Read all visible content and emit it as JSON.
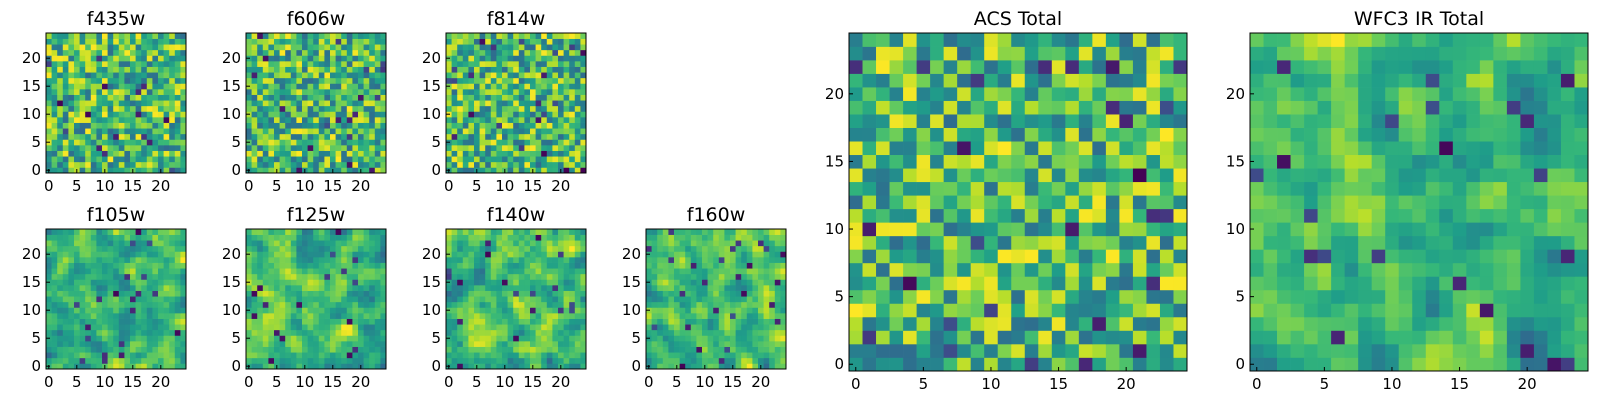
{
  "chart_data": [
    {
      "type": "heatmap",
      "title": "f435w",
      "grid": "25x25",
      "xticks": [
        "0",
        "5",
        "10",
        "15",
        "20"
      ],
      "yticks": [
        "0",
        "5",
        "10",
        "15",
        "20"
      ],
      "seed": 11,
      "smooth": 0,
      "colormap": "viridis"
    },
    {
      "type": "heatmap",
      "title": "f606w",
      "grid": "25x25",
      "xticks": [
        "0",
        "5",
        "10",
        "15",
        "20"
      ],
      "yticks": [
        "0",
        "5",
        "10",
        "15",
        "20"
      ],
      "seed": 23,
      "smooth": 0,
      "colormap": "viridis"
    },
    {
      "type": "heatmap",
      "title": "f814w",
      "grid": "25x25",
      "xticks": [
        "0",
        "5",
        "10",
        "15",
        "20"
      ],
      "yticks": [
        "0",
        "5",
        "10",
        "15",
        "20"
      ],
      "seed": 37,
      "smooth": 0,
      "colormap": "viridis"
    },
    {
      "type": "heatmap",
      "title": "f105w",
      "grid": "25x25",
      "xticks": [
        "0",
        "5",
        "10",
        "15",
        "20"
      ],
      "yticks": [
        "0",
        "5",
        "10",
        "15",
        "20"
      ],
      "seed": 41,
      "smooth": 1,
      "colormap": "viridis"
    },
    {
      "type": "heatmap",
      "title": "f125w",
      "grid": "25x25",
      "xticks": [
        "0",
        "5",
        "10",
        "15",
        "20"
      ],
      "yticks": [
        "0",
        "5",
        "10",
        "15",
        "20"
      ],
      "seed": 53,
      "smooth": 1,
      "colormap": "viridis"
    },
    {
      "type": "heatmap",
      "title": "f140w",
      "grid": "25x25",
      "xticks": [
        "0",
        "5",
        "10",
        "15",
        "20"
      ],
      "yticks": [
        "0",
        "5",
        "10",
        "15",
        "20"
      ],
      "seed": 67,
      "smooth": 1,
      "colormap": "viridis"
    },
    {
      "type": "heatmap",
      "title": "f160w",
      "grid": "25x25",
      "xticks": [
        "0",
        "5",
        "10",
        "15",
        "20"
      ],
      "yticks": [
        "0",
        "5",
        "10",
        "15",
        "20"
      ],
      "seed": 79,
      "smooth": 1,
      "colormap": "viridis"
    },
    {
      "type": "heatmap",
      "title": "ACS Total",
      "grid": "25x25",
      "xticks": [
        "0",
        "5",
        "10",
        "15",
        "20"
      ],
      "yticks": [
        "0",
        "5",
        "10",
        "15",
        "20"
      ],
      "seed": 97,
      "smooth": 0,
      "colormap": "viridis"
    },
    {
      "type": "heatmap",
      "title": "WFC3 IR Total",
      "grid": "25x25",
      "xticks": [
        "0",
        "5",
        "10",
        "15",
        "20"
      ],
      "yticks": [
        "0",
        "5",
        "10",
        "15",
        "20"
      ],
      "seed": 131,
      "smooth": 1,
      "colormap": "viridis"
    }
  ]
}
